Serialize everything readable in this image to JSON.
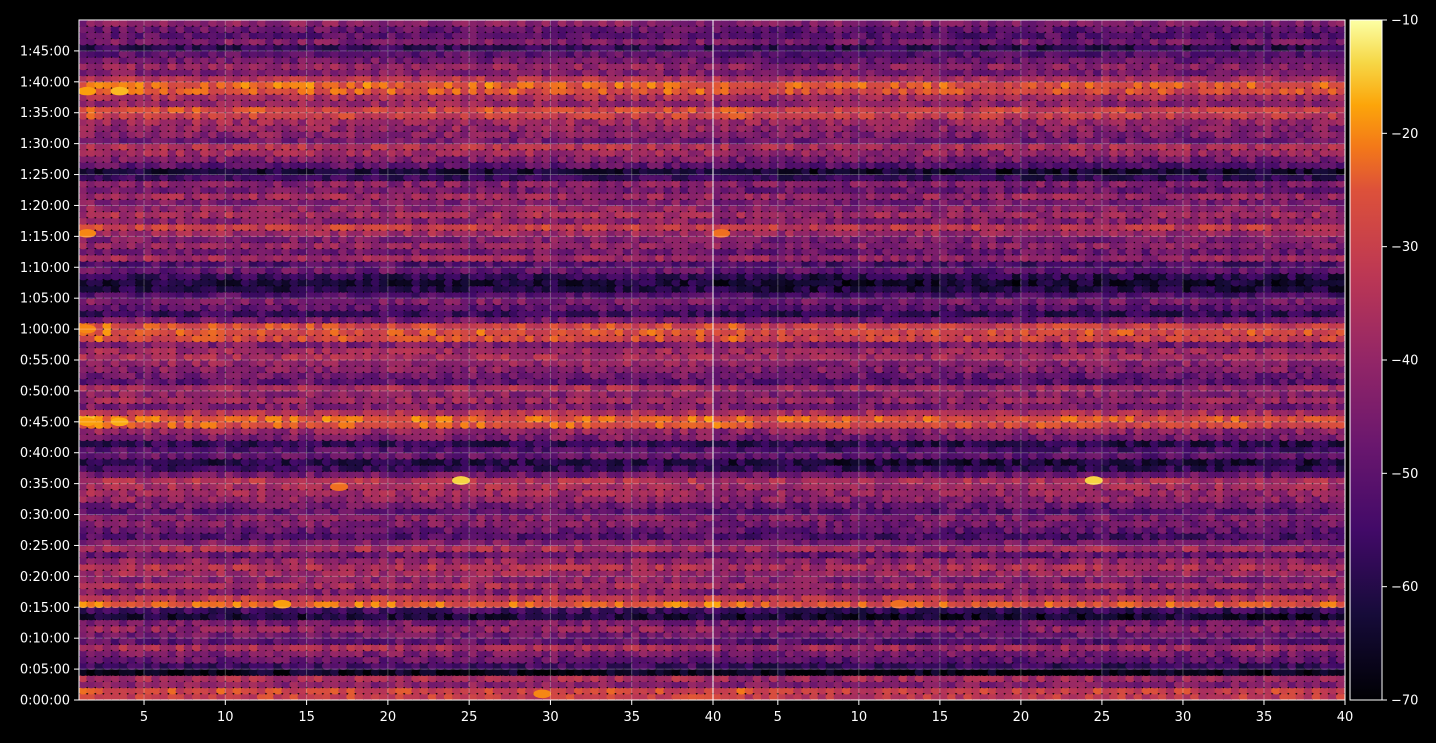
{
  "chart_data": {
    "type": "heatmap",
    "title": "",
    "xlabel": "",
    "ylabel": "",
    "panels": [
      {
        "name": "",
        "x_ticks": [
          5,
          10,
          15,
          20,
          25,
          30,
          35,
          40
        ],
        "xlim": [
          1,
          40
        ]
      },
      {
        "name": "",
        "x_ticks": [
          5,
          10,
          15,
          20,
          25,
          30,
          35,
          40
        ],
        "xlim": [
          1,
          40
        ]
      }
    ],
    "y_ticks": [
      "0:00:00",
      "0:05:00",
      "0:10:00",
      "0:15:00",
      "0:20:00",
      "0:25:00",
      "0:30:00",
      "0:35:00",
      "0:40:00",
      "0:45:00",
      "0:50:00",
      "0:55:00",
      "1:00:00",
      "1:05:00",
      "1:10:00",
      "1:15:00",
      "1:20:00",
      "1:25:00",
      "1:30:00",
      "1:35:00",
      "1:40:00",
      "1:45:00"
    ],
    "ylim_minutes": [
      0,
      110
    ],
    "colorbar": {
      "colormap": "inferno",
      "vmin": -70,
      "vmax": -10,
      "ticks": [
        -10,
        -20,
        -30,
        -40,
        -50,
        -60,
        -70
      ],
      "tick_labels": [
        "−10",
        "−20",
        "−30",
        "−40",
        "−50",
        "−60",
        "−70"
      ]
    },
    "grid": true,
    "row_profile": [
      {
        "t": 0.5,
        "v": -30
      },
      {
        "t": 1.5,
        "v": -28
      },
      {
        "t": 2.5,
        "v": -42
      },
      {
        "t": 3.5,
        "v": -36
      },
      {
        "t": 4.5,
        "v": -66
      },
      {
        "t": 5.5,
        "v": -55
      },
      {
        "t": 6.5,
        "v": -48
      },
      {
        "t": 7.5,
        "v": -44
      },
      {
        "t": 8.5,
        "v": -36
      },
      {
        "t": 9.5,
        "v": -50
      },
      {
        "t": 10.5,
        "v": -46
      },
      {
        "t": 11.5,
        "v": -40
      },
      {
        "t": 12.5,
        "v": -45
      },
      {
        "t": 13.5,
        "v": -62
      },
      {
        "t": 14.5,
        "v": -55
      },
      {
        "t": 15.5,
        "v": -24
      },
      {
        "t": 16.5,
        "v": -32
      },
      {
        "t": 17.5,
        "v": -44
      },
      {
        "t": 18.5,
        "v": -36
      },
      {
        "t": 19.5,
        "v": -42
      },
      {
        "t": 20.5,
        "v": -38
      },
      {
        "t": 21.5,
        "v": -34
      },
      {
        "t": 22.5,
        "v": -40
      },
      {
        "t": 23.5,
        "v": -48
      },
      {
        "t": 24.5,
        "v": -36
      },
      {
        "t": 25.5,
        "v": -44
      },
      {
        "t": 26.5,
        "v": -52
      },
      {
        "t": 27.5,
        "v": -48
      },
      {
        "t": 28.5,
        "v": -44
      },
      {
        "t": 29.5,
        "v": -42
      },
      {
        "t": 30.5,
        "v": -50
      },
      {
        "t": 31.5,
        "v": -46
      },
      {
        "t": 32.5,
        "v": -40
      },
      {
        "t": 33.5,
        "v": -38
      },
      {
        "t": 34.5,
        "v": -36
      },
      {
        "t": 35.5,
        "v": -34
      },
      {
        "t": 36.5,
        "v": -46
      },
      {
        "t": 37.5,
        "v": -56
      },
      {
        "t": 38.5,
        "v": -60
      },
      {
        "t": 39.5,
        "v": -48
      },
      {
        "t": 40.5,
        "v": -52
      },
      {
        "t": 41.5,
        "v": -58
      },
      {
        "t": 42.5,
        "v": -44
      },
      {
        "t": 43.5,
        "v": -40
      },
      {
        "t": 44.5,
        "v": -26
      },
      {
        "t": 45.5,
        "v": -24
      },
      {
        "t": 46.5,
        "v": -34
      },
      {
        "t": 47.5,
        "v": -44
      },
      {
        "t": 48.5,
        "v": -38
      },
      {
        "t": 49.5,
        "v": -42
      },
      {
        "t": 50.5,
        "v": -36
      },
      {
        "t": 51.5,
        "v": -50
      },
      {
        "t": 52.5,
        "v": -46
      },
      {
        "t": 53.5,
        "v": -42
      },
      {
        "t": 54.5,
        "v": -40
      },
      {
        "t": 55.5,
        "v": -36
      },
      {
        "t": 56.5,
        "v": -38
      },
      {
        "t": 57.5,
        "v": -44
      },
      {
        "t": 58.5,
        "v": -28
      },
      {
        "t": 59.5,
        "v": -26
      },
      {
        "t": 60.5,
        "v": -28
      },
      {
        "t": 61.5,
        "v": -46
      },
      {
        "t": 62.5,
        "v": -56
      },
      {
        "t": 63.5,
        "v": -50
      },
      {
        "t": 64.5,
        "v": -44
      },
      {
        "t": 65.5,
        "v": -52
      },
      {
        "t": 66.5,
        "v": -60
      },
      {
        "t": 67.5,
        "v": -62
      },
      {
        "t": 68.5,
        "v": -58
      },
      {
        "t": 69.5,
        "v": -48
      },
      {
        "t": 70.5,
        "v": -52
      },
      {
        "t": 71.5,
        "v": -38
      },
      {
        "t": 72.5,
        "v": -46
      },
      {
        "t": 73.5,
        "v": -40
      },
      {
        "t": 74.5,
        "v": -44
      },
      {
        "t": 75.5,
        "v": -38
      },
      {
        "t": 76.5,
        "v": -30
      },
      {
        "t": 77.5,
        "v": -42
      },
      {
        "t": 78.5,
        "v": -36
      },
      {
        "t": 79.5,
        "v": -40
      },
      {
        "t": 80.5,
        "v": -44
      },
      {
        "t": 81.5,
        "v": -38
      },
      {
        "t": 82.5,
        "v": -46
      },
      {
        "t": 83.5,
        "v": -42
      },
      {
        "t": 84.5,
        "v": -56
      },
      {
        "t": 85.5,
        "v": -62
      },
      {
        "t": 86.5,
        "v": -50
      },
      {
        "t": 87.5,
        "v": -44
      },
      {
        "t": 88.5,
        "v": -38
      },
      {
        "t": 89.5,
        "v": -34
      },
      {
        "t": 90.5,
        "v": -46
      },
      {
        "t": 91.5,
        "v": -42
      },
      {
        "t": 92.5,
        "v": -40
      },
      {
        "t": 93.5,
        "v": -38
      },
      {
        "t": 94.5,
        "v": -30
      },
      {
        "t": 95.5,
        "v": -28
      },
      {
        "t": 96.5,
        "v": -40
      },
      {
        "t": 97.5,
        "v": -36
      },
      {
        "t": 98.5,
        "v": -26
      },
      {
        "t": 99.5,
        "v": -24
      },
      {
        "t": 100.5,
        "v": -34
      },
      {
        "t": 101.5,
        "v": -44
      },
      {
        "t": 102.5,
        "v": -40
      },
      {
        "t": 103.5,
        "v": -46
      },
      {
        "t": 104.5,
        "v": -50
      },
      {
        "t": 105.5,
        "v": -58
      },
      {
        "t": 106.5,
        "v": -44
      },
      {
        "t": 107.5,
        "v": -50
      },
      {
        "t": 108.5,
        "v": -48
      },
      {
        "t": 109.5,
        "v": -42
      }
    ],
    "highlights": [
      {
        "panel": 0,
        "x": 1.5,
        "t": 98.5,
        "v": -18
      },
      {
        "panel": 0,
        "x": 3.5,
        "t": 98.5,
        "v": -16
      },
      {
        "panel": 0,
        "x": 1.5,
        "t": 75.5,
        "v": -20
      },
      {
        "panel": 0,
        "x": 1.5,
        "t": 60.0,
        "v": -20
      },
      {
        "panel": 0,
        "x": 1.5,
        "t": 45.0,
        "v": -18
      },
      {
        "panel": 0,
        "x": 3.5,
        "t": 45.0,
        "v": -17
      },
      {
        "panel": 0,
        "x": 13.5,
        "t": 15.5,
        "v": -18
      },
      {
        "panel": 0,
        "x": 24.5,
        "t": 35.5,
        "v": -14
      },
      {
        "panel": 0,
        "x": 17.0,
        "t": 34.5,
        "v": -22
      },
      {
        "panel": 0,
        "x": 29.5,
        "t": 1.0,
        "v": -20
      },
      {
        "panel": 1,
        "x": 1.5,
        "t": 75.5,
        "v": -22
      },
      {
        "panel": 1,
        "x": 24.5,
        "t": 35.5,
        "v": -14
      },
      {
        "panel": 1,
        "x": 12.5,
        "t": 15.5,
        "v": -22
      }
    ]
  }
}
